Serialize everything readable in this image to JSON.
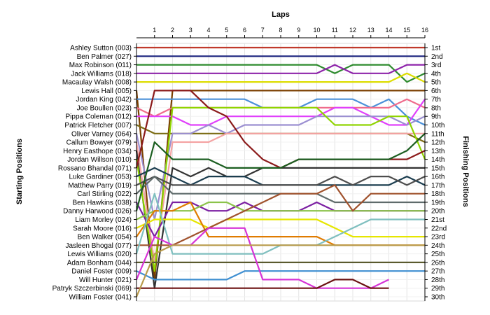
{
  "chart_data": {
    "type": "line",
    "title": "",
    "xlabel": "Laps",
    "ylabel_left": "Starting Positions",
    "ylabel_right": "Finishing Positions",
    "x": [
      1,
      2,
      3,
      4,
      5,
      6,
      7,
      8,
      9,
      10,
      11,
      12,
      13,
      14,
      15,
      16
    ],
    "drivers": [
      "Ashley Sutton (003)",
      "Ben Palmer (027)",
      "Max Robinson (011)",
      "Jack Williams (018)",
      "Macaulay Walsh (008)",
      "Lewis Hall (005)",
      "Jordan King (042)",
      "Joe Boullen (023)",
      "Pippa Coleman (012)",
      "Patrick Fletcher (007)",
      "Oliver Varney (064)",
      "Callum Bowyer (079)",
      "Henry Easthope (034)",
      "Jordan Willson (010)",
      "Rossano Bhandal (071)",
      "Luke Gardiner (053)",
      "Matthew Parry (019)",
      "Carl Stirling (022)",
      "Ben Hawkins (038)",
      "Danny Harwood (026)",
      "Liam Morley (024)",
      "Sarah Moore (016)",
      "Ben Walker (054)",
      "Jasleen Bhogal (077)",
      "Lewis Williams (020)",
      "Adam Bonham (044)",
      "Daniel Foster (009)",
      "Will Hunter (021)",
      "Patryk Szczerbinski (069)",
      "William Foster (041)"
    ],
    "finish_labels": [
      "1st",
      "2nd",
      "3rd",
      "4th",
      "5th",
      "6th",
      "7th",
      "8th",
      "9th",
      "10th",
      "11th",
      "12th",
      "13th",
      "14th",
      "15th",
      "16th",
      "17th",
      "18th",
      "19th",
      "20th",
      "21st",
      "22nd",
      "23rd",
      "24th",
      "25th",
      "26th",
      "27th",
      "28th",
      "29th",
      "30th"
    ],
    "y_range": [
      1,
      30
    ],
    "grid": true,
    "series": [
      {
        "color": "#c0392b",
        "positions": [
          1,
          1,
          1,
          1,
          1,
          1,
          1,
          1,
          1,
          1,
          1,
          1,
          1,
          1,
          1,
          1,
          1
        ]
      },
      {
        "color": "#1a237e",
        "positions": [
          2,
          2,
          2,
          2,
          2,
          2,
          2,
          2,
          2,
          2,
          2,
          2,
          2,
          2,
          2,
          2,
          2
        ]
      },
      {
        "color": "#2e8b2e",
        "positions": [
          3,
          3,
          3,
          3,
          3,
          3,
          3,
          3,
          3,
          3,
          3,
          4,
          3,
          3,
          3,
          5,
          4
        ]
      },
      {
        "color": "#8e24aa",
        "positions": [
          4,
          4,
          4,
          4,
          4,
          4,
          4,
          4,
          4,
          4,
          4,
          3,
          4,
          4,
          4,
          3,
          3
        ]
      },
      {
        "color": "#dddd00",
        "positions": [
          5,
          5,
          5,
          5,
          5,
          5,
          5,
          5,
          5,
          5,
          5,
          5,
          5,
          5,
          5,
          4,
          5
        ]
      },
      {
        "color": "#7b3f00",
        "positions": [
          6,
          28,
          6,
          6,
          6,
          6,
          6,
          6,
          6,
          6,
          6,
          6,
          6,
          6,
          6,
          6,
          6
        ]
      },
      {
        "color": "#4a90d9",
        "positions": [
          7,
          7,
          7,
          7,
          7,
          7,
          7,
          8,
          8,
          8,
          7,
          7,
          7,
          8,
          7,
          9,
          10
        ]
      },
      {
        "color": "#ef6c8c",
        "positions": [
          8,
          9,
          8,
          8,
          8,
          8,
          8,
          8,
          8,
          8,
          8,
          8,
          8,
          8,
          8,
          7,
          8
        ]
      },
      {
        "color": "#e040fb",
        "positions": [
          9,
          9,
          9,
          10,
          10,
          9,
          9,
          9,
          9,
          9,
          9,
          8,
          8,
          9,
          10,
          10,
          7
        ]
      },
      {
        "color": "#7c6c14",
        "positions": [
          10,
          11,
          11,
          11,
          11,
          11,
          11,
          11,
          11,
          11,
          11,
          11,
          11,
          11,
          11,
          11,
          12
        ]
      },
      {
        "color": "#9b8fd1",
        "positions": [
          11,
          21,
          11,
          11,
          10,
          11,
          10,
          10,
          10,
          10,
          9,
          9,
          9,
          9,
          9,
          10,
          9
        ]
      },
      {
        "color": "#f4a3a3",
        "positions": [
          12,
          26,
          12,
          12,
          12,
          11,
          11,
          11,
          11,
          11,
          11,
          11,
          11,
          11,
          11,
          11,
          11
        ]
      },
      {
        "color": "#333333",
        "positions": [
          13,
          29,
          15,
          16,
          15,
          16,
          16,
          15,
          15,
          15,
          15,
          15,
          15,
          15,
          15,
          15,
          15
        ]
      },
      {
        "color": "#8fd400",
        "positions": [
          14,
          27,
          8,
          8,
          8,
          8,
          8,
          8,
          8,
          8,
          8,
          10,
          10,
          10,
          9,
          9,
          14
        ]
      },
      {
        "color": "#8b1a1a",
        "positions": [
          15,
          6,
          6,
          6,
          8,
          9,
          12,
          14,
          15,
          14,
          14,
          14,
          14,
          14,
          14,
          14,
          13
        ]
      },
      {
        "color": "#1b3d4f",
        "positions": [
          16,
          15,
          16,
          17,
          16,
          16,
          16,
          17,
          17,
          17,
          17,
          17,
          17,
          17,
          17,
          16,
          17
        ]
      },
      {
        "color": "#4d4d4d",
        "positions": [
          17,
          16,
          17,
          17,
          17,
          17,
          17,
          17,
          17,
          17,
          17,
          16,
          17,
          16,
          16,
          17,
          16
        ]
      },
      {
        "color": "#5f6b6b",
        "positions": [
          18,
          16,
          18,
          18,
          18,
          18,
          18,
          18,
          18,
          18,
          18,
          19,
          19,
          19,
          19,
          19,
          19
        ]
      },
      {
        "color": "#7b1fa2",
        "positions": [
          19,
          23,
          19,
          19,
          20,
          20,
          19,
          20,
          20,
          20,
          19,
          20,
          20,
          20,
          20,
          20,
          20
        ]
      },
      {
        "color": "#1b5e20",
        "positions": [
          20,
          12,
          14,
          14,
          14,
          15,
          15,
          15,
          15,
          14,
          14,
          14,
          14,
          14,
          14,
          13,
          11
        ]
      },
      {
        "color": "#8bc34a",
        "positions": [
          21,
          20,
          20,
          20,
          19,
          19,
          20,
          20,
          20,
          20,
          20,
          20,
          20,
          20,
          20,
          20,
          20
        ]
      },
      {
        "color": "#e6e600",
        "positions": [
          22,
          21,
          21,
          21,
          22,
          21,
          21,
          21,
          21,
          21,
          21,
          22,
          23,
          23,
          23,
          23,
          23
        ]
      },
      {
        "color": "#e07b00",
        "positions": [
          23,
          20,
          20,
          19,
          23,
          23,
          23,
          23,
          23,
          23,
          23,
          24,
          24,
          24,
          24,
          24,
          24
        ]
      },
      {
        "color": "#a0522d",
        "positions": [
          24,
          24,
          24,
          23,
          22,
          21,
          20,
          19,
          18,
          18,
          18,
          17,
          20,
          18,
          18,
          18,
          18
        ]
      },
      {
        "color": "#7fbfbf",
        "positions": [
          25,
          18,
          25,
          25,
          25,
          25,
          25,
          25,
          24,
          24,
          24,
          23,
          22,
          21,
          21,
          21,
          21
        ]
      },
      {
        "color": "#5a5a2e",
        "positions": [
          26,
          26,
          26,
          26,
          26,
          26,
          26,
          26,
          26,
          26,
          26,
          26,
          26,
          26,
          26,
          26,
          26
        ]
      },
      {
        "color": "#3f8fd1",
        "positions": [
          27,
          28,
          28,
          28,
          28,
          28,
          27,
          27,
          27,
          27,
          27,
          27,
          27,
          27,
          27,
          27,
          27
        ]
      },
      {
        "color": "#d633d6",
        "positions": [
          28,
          23,
          24,
          24,
          22,
          22,
          22,
          28,
          28,
          28,
          29,
          29,
          29,
          29,
          28,
          null,
          null
        ]
      },
      {
        "color": "#6b1010",
        "positions": [
          29,
          29,
          29,
          29,
          29,
          29,
          29,
          29,
          29,
          29,
          29,
          28,
          28,
          29,
          29,
          null,
          null
        ]
      },
      {
        "color": "#b89a4a",
        "positions": [
          30,
          25,
          24,
          24,
          24,
          24,
          24,
          24,
          24,
          24,
          24,
          24,
          24,
          24,
          24,
          24,
          24
        ]
      }
    ]
  }
}
